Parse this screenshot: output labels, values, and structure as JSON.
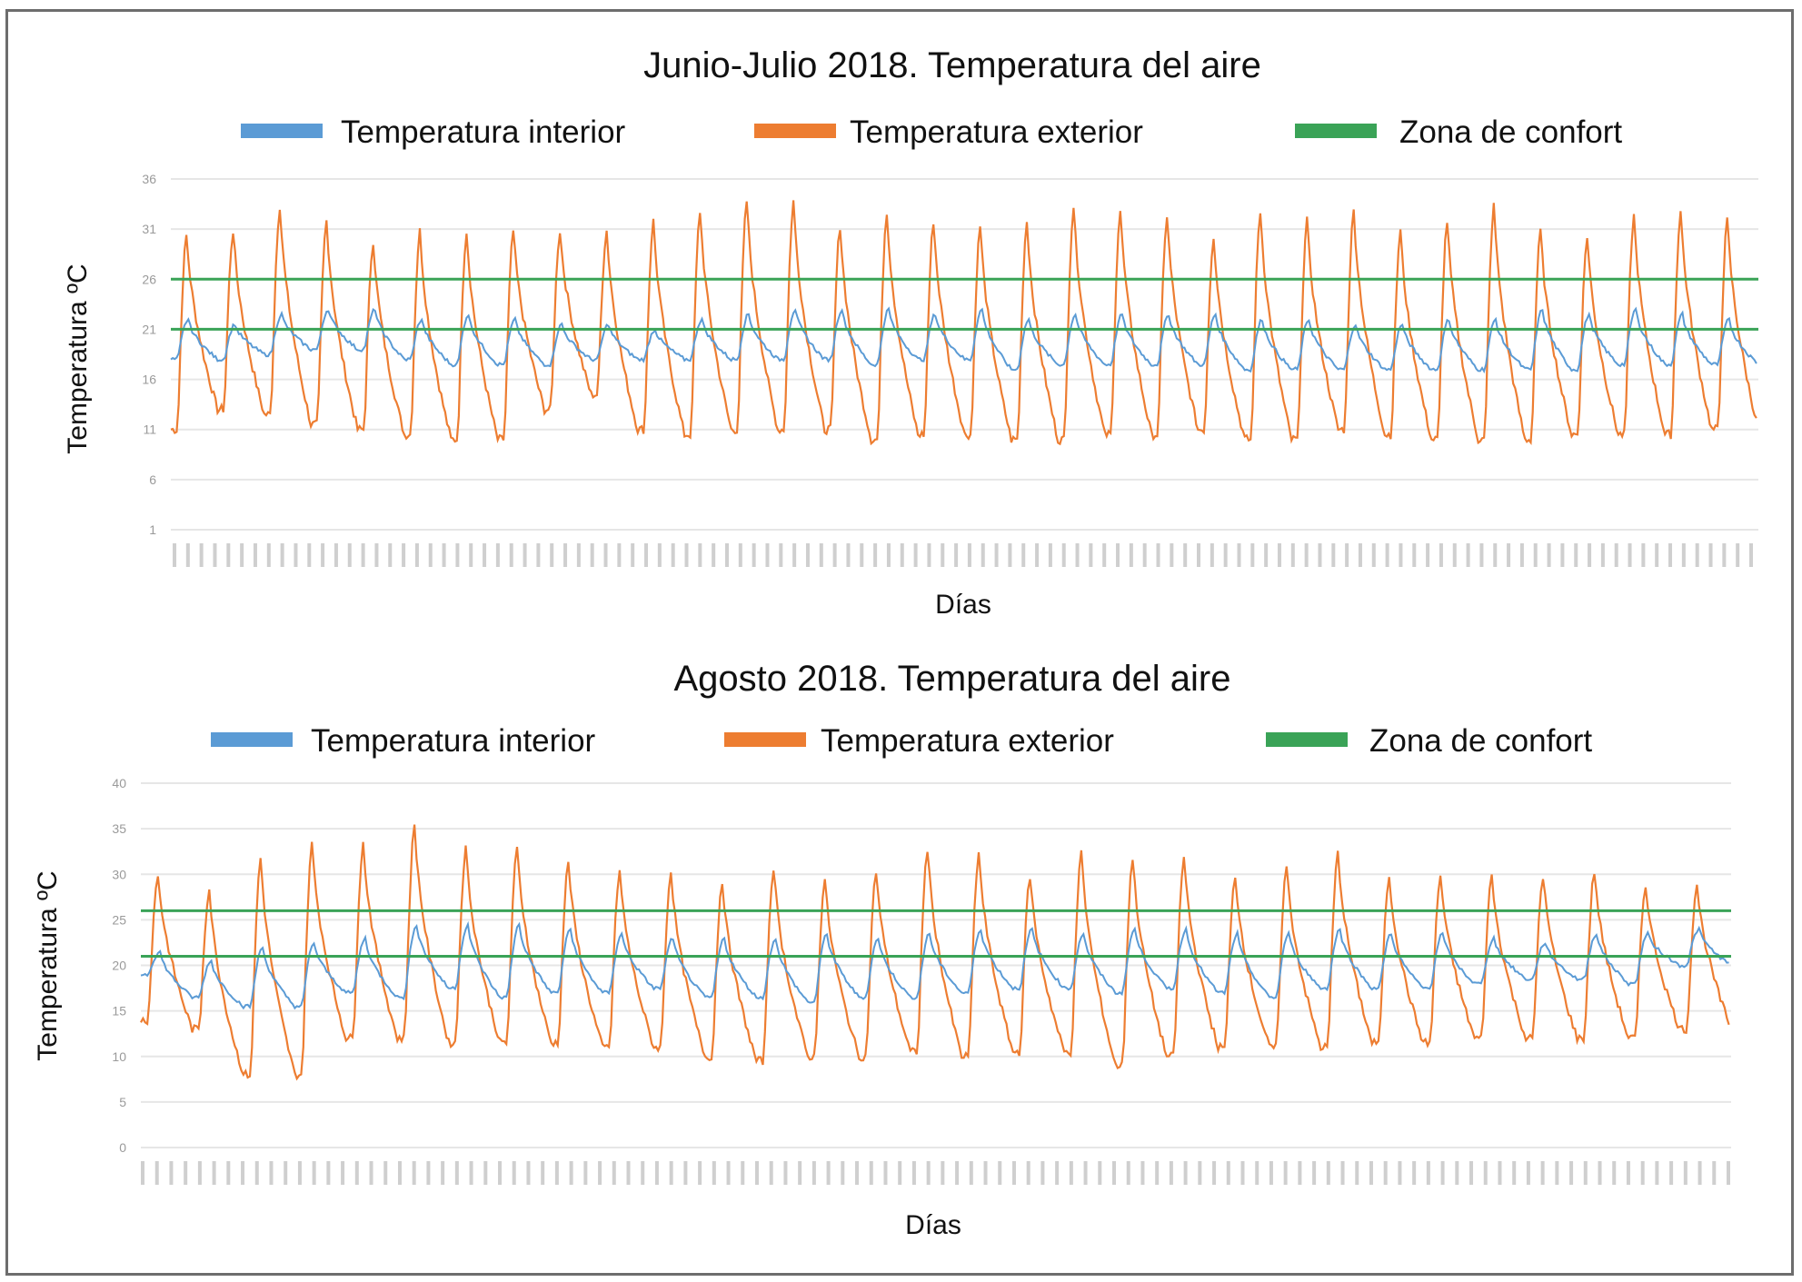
{
  "chart_data": [
    {
      "type": "line",
      "title": "Junio-Julio 2018. Temperatura del aire",
      "xlabel": "Días",
      "ylabel": "Temperatura ºC",
      "ylim": [
        1,
        36
      ],
      "yticks": [
        1,
        6,
        11,
        16,
        21,
        26,
        31,
        36
      ],
      "grid": true,
      "legend_position": "top",
      "x_days": 34,
      "colors": {
        "interior": "#5b9bd5",
        "exterior": "#ed7d31",
        "confort": "#3aa357"
      },
      "series": [
        {
          "name": "Temperatura interior",
          "daily_max": [
            22,
            21.5,
            22.5,
            23,
            23,
            22,
            22.5,
            22,
            21.5,
            21.5,
            21,
            22,
            22.5,
            23,
            23,
            23,
            22.5,
            23,
            22,
            22.5,
            22.5,
            22.5,
            22.5,
            22,
            22,
            21.5,
            21.5,
            22,
            22,
            23,
            22.5,
            23,
            22.5,
            22
          ],
          "daily_min": [
            18,
            18,
            18.5,
            19,
            19,
            18,
            17.5,
            17.5,
            17.5,
            18,
            18,
            18,
            18,
            18,
            18,
            17.5,
            18,
            18,
            17,
            17.5,
            17.5,
            17.5,
            17.5,
            17,
            17,
            17,
            17,
            17,
            17,
            17,
            17,
            17.5,
            17.5,
            17.5
          ]
        },
        {
          "name": "Temperatura exterior",
          "daily_max": [
            30.5,
            31,
            33.5,
            32,
            30,
            31,
            31,
            31,
            31,
            31,
            32,
            33,
            34,
            34,
            31.5,
            33,
            32,
            31.5,
            32,
            33.5,
            33,
            32.5,
            30.5,
            33,
            32,
            33,
            31,
            32,
            33.5,
            31,
            30.5,
            32.5,
            33,
            32
          ],
          "daily_min": [
            11,
            13,
            12.5,
            11.5,
            11,
            10.5,
            10,
            10,
            13,
            14.5,
            11,
            10.5,
            11,
            11,
            11,
            10,
            10.5,
            10.5,
            10,
            10,
            10.5,
            10.5,
            11,
            10,
            10,
            11,
            10.5,
            10,
            10,
            10,
            10.5,
            10.5,
            10.5,
            11
          ]
        },
        {
          "name": "Zona de confort",
          "bounds": [
            21,
            26
          ]
        }
      ]
    },
    {
      "type": "line",
      "title": "Agosto 2018. Temperatura del aire",
      "xlabel": "Días",
      "ylabel": "Temperatura ºC",
      "ylim": [
        0,
        40
      ],
      "yticks": [
        0,
        5,
        10,
        15,
        20,
        25,
        30,
        35,
        40
      ],
      "grid": true,
      "legend_position": "top",
      "x_days": 31,
      "colors": {
        "interior": "#5b9bd5",
        "exterior": "#ed7d31",
        "confort": "#3aa357"
      },
      "series": [
        {
          "name": "Temperatura interior",
          "daily_max": [
            21.5,
            20.5,
            22,
            22.5,
            23,
            24.5,
            24.5,
            24.5,
            24,
            23.5,
            23,
            23,
            23,
            23.5,
            23,
            23.5,
            24,
            24,
            23.5,
            24,
            24,
            23.5,
            23.5,
            24,
            23.5,
            23.5,
            23,
            22.5,
            23.5,
            23.5,
            24
          ],
          "daily_min": [
            19,
            16.5,
            15.5,
            15.5,
            17,
            16.5,
            17.5,
            16.5,
            17,
            17,
            17.5,
            16.5,
            16.5,
            16,
            16.5,
            16.5,
            17,
            17.5,
            17.5,
            17,
            17.5,
            17,
            16.5,
            17.5,
            17.5,
            17.5,
            18,
            18.5,
            18.5,
            18,
            20
          ]
        },
        {
          "name": "Temperatura exterior",
          "daily_max": [
            30,
            28.5,
            32,
            33.5,
            33.5,
            35.5,
            33,
            33,
            31.5,
            30.5,
            30.5,
            29.5,
            31,
            29.5,
            30.5,
            33,
            32.5,
            30,
            32.5,
            32,
            32,
            30,
            31,
            32.5,
            30,
            30,
            30,
            30,
            30.5,
            29,
            29
          ],
          "daily_min": [
            14,
            13,
            8,
            8,
            12,
            12,
            11.5,
            11.5,
            11.5,
            11,
            11,
            10,
            9.5,
            10,
            10,
            10.5,
            10,
            10.5,
            10.5,
            9,
            10,
            11,
            11,
            11,
            11.5,
            11.5,
            12,
            12,
            12,
            12,
            13
          ]
        },
        {
          "name": "Zona de confort",
          "bounds": [
            21,
            26
          ]
        }
      ]
    }
  ]
}
